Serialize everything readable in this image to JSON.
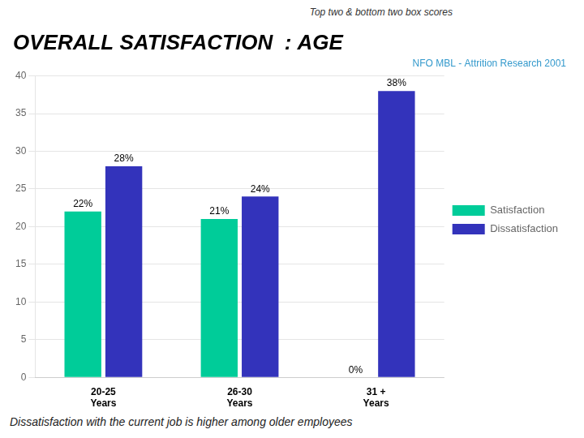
{
  "chart_data": {
    "type": "bar",
    "title": "OVERALL SATISFACTION  : AGE",
    "subtitle": "NFO MBL - Attrition Research 2001",
    "annotations": [
      "Top two & bottom two box scores",
      "Dissatisfaction with the current job is higher among older employees"
    ],
    "categories": [
      "20-25\nYears",
      "26-30\nYears",
      "31 +\nYears"
    ],
    "series": [
      {
        "name": "Satisfaction",
        "color": "#00CC99",
        "values": [
          22,
          21,
          0
        ],
        "value_labels": [
          "22%",
          "21%",
          "0%"
        ]
      },
      {
        "name": "Dissatisfaction",
        "color": "#3333BB",
        "values": [
          28,
          24,
          38
        ],
        "value_labels": [
          "28%",
          "24%",
          "38%"
        ]
      }
    ],
    "ylim": [
      0,
      40
    ],
    "yticks": [
      0,
      5,
      10,
      15,
      20,
      25,
      30,
      35,
      40
    ],
    "grid": true,
    "legend": "right",
    "data_labels": true
  }
}
